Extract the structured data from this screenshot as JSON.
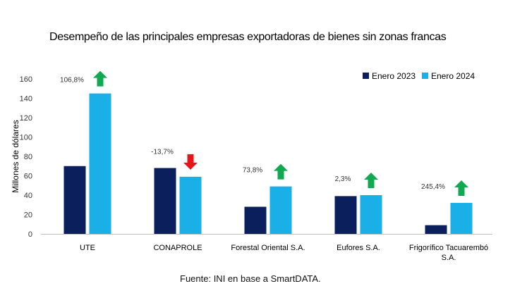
{
  "source": "Fuente: INI en base a SmartDATA.",
  "chart_data": {
    "type": "bar",
    "title": "Desempeño de las principales empresas exportadoras de bienes sin zonas francas",
    "xlabel": "",
    "ylabel": "Millones de dólares",
    "ylim": [
      0,
      160
    ],
    "yticks": [
      0,
      20,
      40,
      60,
      80,
      100,
      120,
      140,
      160
    ],
    "grid": false,
    "legend_position": "top-right",
    "categories": [
      [
        "UTE"
      ],
      [
        "CONAPROLE"
      ],
      [
        "Forestal Oriental S.A."
      ],
      [
        "Eufores S.A."
      ],
      [
        "Frigorífico Tacuarembó",
        "S.A."
      ]
    ],
    "series": [
      {
        "name": "Enero 2023",
        "color": "#0a1f5c",
        "values": [
          70,
          68,
          28,
          39,
          9
        ]
      },
      {
        "name": "Enero 2024",
        "color": "#1aafe6",
        "values": [
          145,
          59,
          49,
          40,
          32
        ]
      }
    ],
    "annotations": [
      {
        "text": "106,8%",
        "direction": "up"
      },
      {
        "text": "-13,7%",
        "direction": "down"
      },
      {
        "text": "73,8%",
        "direction": "up"
      },
      {
        "text": "2,3%",
        "direction": "up"
      },
      {
        "text": "245,4%",
        "direction": "up"
      }
    ],
    "arrow_colors": {
      "up": "#10a850",
      "down": "#e8141c"
    }
  }
}
